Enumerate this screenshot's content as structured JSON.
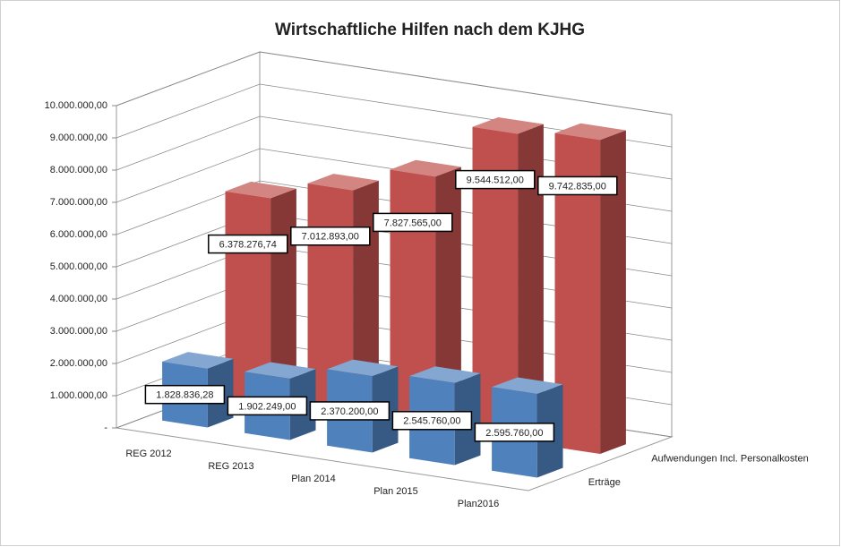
{
  "chart_data": {
    "type": "bar3d",
    "title": "Wirtschaftliche Hilfen nach dem KJHG",
    "categories": [
      "REG 2012",
      "REG 2013",
      "Plan 2014",
      "Plan 2015",
      "Plan2016"
    ],
    "series": [
      {
        "name": "Erträge",
        "color": "#4f81bd",
        "values": [
          1828836.28,
          1902249,
          2370200,
          2545760,
          2595760
        ],
        "value_labels": [
          "1.828.836,28",
          "1.902.249,00",
          "2.370.200,00",
          "2.545.760,00",
          "2.595.760,00"
        ]
      },
      {
        "name": "Aufwendungen Incl. Personalkosten",
        "color": "#c0504d",
        "values": [
          6378276.74,
          7012893,
          7827565,
          9544512,
          9742835
        ],
        "value_labels": [
          "6.378.276,74",
          "7.012.893,00",
          "7.827.565,00",
          "9.544.512,00",
          "9.742.835,00"
        ]
      }
    ],
    "ylim": [
      0,
      10000000
    ],
    "yticks": [
      {
        "value": 0,
        "label": "-"
      },
      {
        "value": 1000000,
        "label": "1.000.000,00"
      },
      {
        "value": 2000000,
        "label": "2.000.000,00"
      },
      {
        "value": 3000000,
        "label": "3.000.000,00"
      },
      {
        "value": 4000000,
        "label": "4.000.000,00"
      },
      {
        "value": 5000000,
        "label": "5.000.000,00"
      },
      {
        "value": 6000000,
        "label": "6.000.000,00"
      },
      {
        "value": 7000000,
        "label": "7.000.000,00"
      },
      {
        "value": 8000000,
        "label": "8.000.000,00"
      },
      {
        "value": 9000000,
        "label": "9.000.000,00"
      },
      {
        "value": 10000000,
        "label": "10.000.000,00"
      }
    ],
    "grid": true
  }
}
